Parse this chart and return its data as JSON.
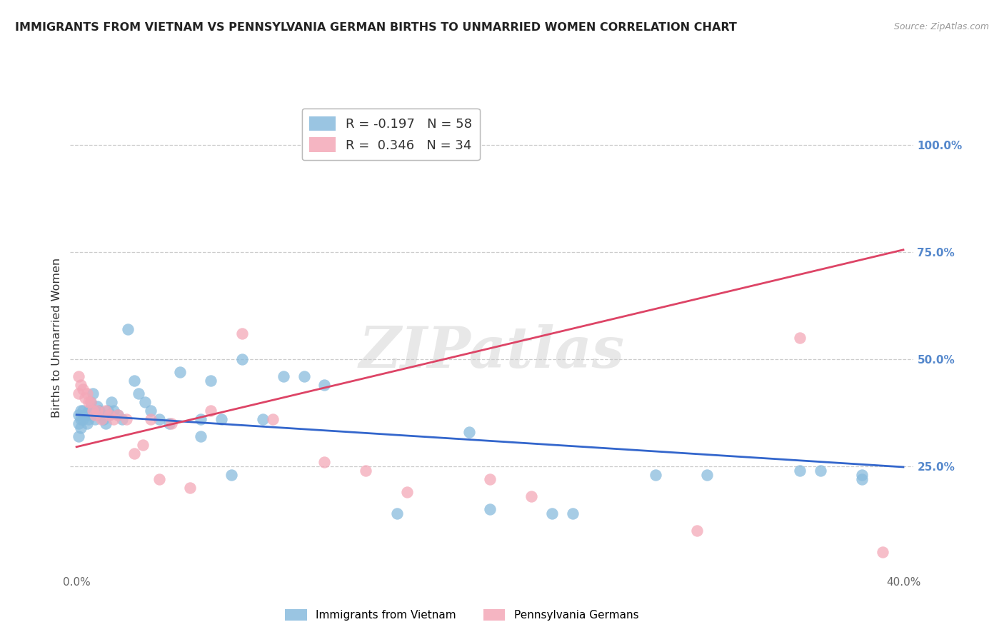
{
  "title": "IMMIGRANTS FROM VIETNAM VS PENNSYLVANIA GERMAN BIRTHS TO UNMARRIED WOMEN CORRELATION CHART",
  "source": "Source: ZipAtlas.com",
  "ylabel": "Births to Unmarried Women",
  "ytick_values": [
    0.25,
    0.5,
    0.75,
    1.0
  ],
  "ytick_labels": [
    "25.0%",
    "50.0%",
    "75.0%",
    "100.0%"
  ],
  "xlim": [
    -0.003,
    0.405
  ],
  "ylim": [
    0.0,
    1.1
  ],
  "legend1_r": "-0.197",
  "legend1_n": "58",
  "legend2_r": "0.346",
  "legend2_n": "34",
  "legend_label1": "Immigrants from Vietnam",
  "legend_label2": "Pennsylvania Germans",
  "blue_color": "#88bbdd",
  "pink_color": "#f4a8b8",
  "blue_line_color": "#3366cc",
  "pink_line_color": "#dd4466",
  "right_axis_color": "#5588cc",
  "grid_color": "#cccccc",
  "title_color": "#222222",
  "watermark": "ZIPatlas",
  "blue_line_x": [
    0.0,
    0.4
  ],
  "blue_line_y": [
    0.37,
    0.248
  ],
  "pink_line_x": [
    0.0,
    0.4
  ],
  "pink_line_y": [
    0.295,
    0.755
  ],
  "blue_scatter_x": [
    0.001,
    0.001,
    0.001,
    0.002,
    0.002,
    0.002,
    0.003,
    0.003,
    0.004,
    0.005,
    0.005,
    0.006,
    0.006,
    0.007,
    0.007,
    0.008,
    0.009,
    0.01,
    0.01,
    0.011,
    0.012,
    0.013,
    0.014,
    0.015,
    0.016,
    0.017,
    0.018,
    0.02,
    0.022,
    0.025,
    0.028,
    0.03,
    0.033,
    0.036,
    0.04,
    0.045,
    0.05,
    0.06,
    0.065,
    0.07,
    0.08,
    0.09,
    0.1,
    0.12,
    0.155,
    0.19,
    0.23,
    0.28,
    0.305,
    0.38,
    0.06,
    0.075,
    0.11,
    0.2,
    0.24,
    0.35,
    0.36,
    0.38
  ],
  "blue_scatter_y": [
    0.37,
    0.35,
    0.32,
    0.38,
    0.36,
    0.34,
    0.38,
    0.36,
    0.37,
    0.37,
    0.35,
    0.36,
    0.38,
    0.4,
    0.38,
    0.42,
    0.36,
    0.37,
    0.39,
    0.38,
    0.37,
    0.36,
    0.35,
    0.38,
    0.37,
    0.4,
    0.38,
    0.37,
    0.36,
    0.57,
    0.45,
    0.42,
    0.4,
    0.38,
    0.36,
    0.35,
    0.47,
    0.36,
    0.45,
    0.36,
    0.5,
    0.36,
    0.46,
    0.44,
    0.14,
    0.33,
    0.14,
    0.23,
    0.23,
    0.22,
    0.32,
    0.23,
    0.46,
    0.15,
    0.14,
    0.24,
    0.24,
    0.23
  ],
  "pink_scatter_x": [
    0.001,
    0.001,
    0.002,
    0.003,
    0.004,
    0.005,
    0.006,
    0.007,
    0.008,
    0.009,
    0.01,
    0.012,
    0.014,
    0.016,
    0.018,
    0.02,
    0.024,
    0.028,
    0.032,
    0.036,
    0.04,
    0.046,
    0.055,
    0.065,
    0.08,
    0.095,
    0.12,
    0.14,
    0.16,
    0.2,
    0.22,
    0.3,
    0.35,
    0.39
  ],
  "pink_scatter_y": [
    0.46,
    0.42,
    0.44,
    0.43,
    0.41,
    0.42,
    0.4,
    0.4,
    0.38,
    0.37,
    0.38,
    0.36,
    0.38,
    0.37,
    0.36,
    0.37,
    0.36,
    0.28,
    0.3,
    0.36,
    0.22,
    0.35,
    0.2,
    0.38,
    0.56,
    0.36,
    0.26,
    0.24,
    0.19,
    0.22,
    0.18,
    0.1,
    0.55,
    0.05
  ],
  "xtick_positions": [
    0.0,
    0.05,
    0.1,
    0.15,
    0.2,
    0.25,
    0.3,
    0.35,
    0.4
  ],
  "xtick_labels": [
    "0.0%",
    "",
    "",
    "",
    "",
    "",
    "",
    "",
    "40.0%"
  ]
}
